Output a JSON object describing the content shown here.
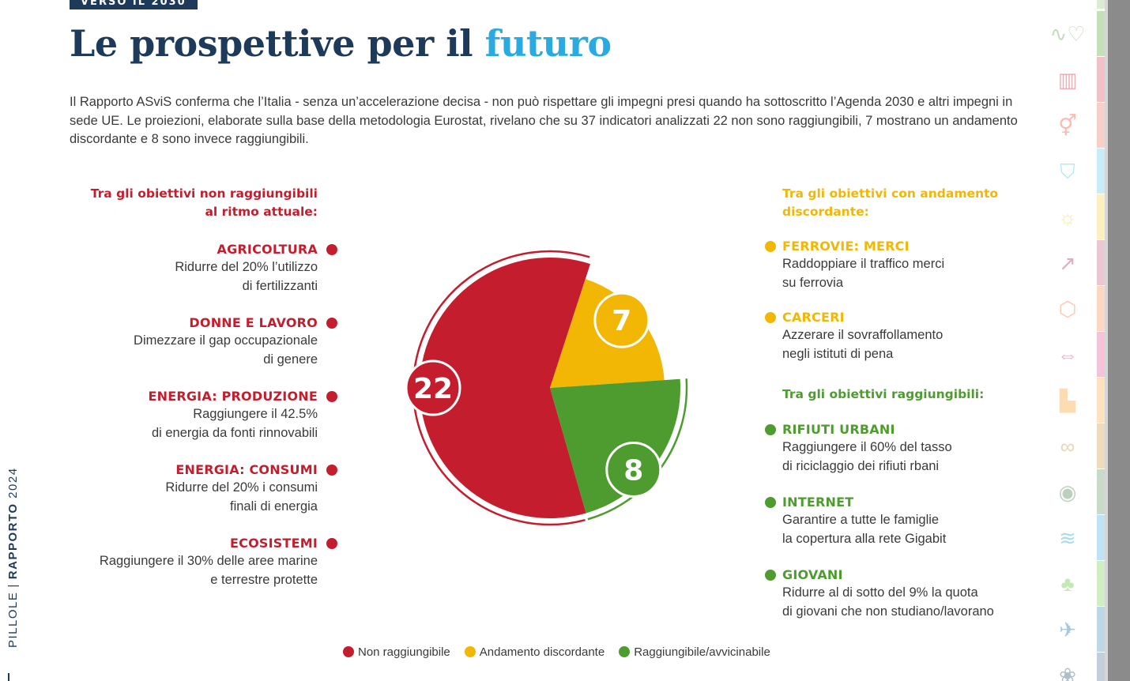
{
  "header": {
    "kicker": "VERSO IL 2030",
    "title_main": "Le prospettive per il",
    "title_accent": "futuro"
  },
  "intro": "Il Rapporto ASviS conferma che l’Italia - senza un’accelerazione decisa - non può rispettare gli impegni presi quando ha sottoscritto l’Agenda 2030 e altri impegni in sede UE. Le proiezioni, elaborate sulla base della metodologia Eurostat, rivelano che su 37 indicatori analizzati 22 non sono raggiungibili, 7 mostrano un andamento discordante e 8 sono invece raggiungibili.",
  "left_group": {
    "heading_line1": "Tra gli obiettivi non raggiungibili",
    "heading_line2": "al ritmo attuale:",
    "items": [
      {
        "title": "AGRICOLTURA",
        "desc1": "Ridurre del 20% l’utilizzo",
        "desc2": "di fertilizzanti"
      },
      {
        "title": "DONNE E LAVORO",
        "desc1": "Dimezzare il gap occupazionale",
        "desc2": "di genere"
      },
      {
        "title": "ENERGIA: PRODUZIONE",
        "desc1": "Raggiungere il 42.5%",
        "desc2": "di energia da fonti rinnovabili"
      },
      {
        "title": "ENERGIA: CONSUMI",
        "desc1": "Ridurre del 20% i consumi",
        "desc2": "finali di energia"
      },
      {
        "title": "ECOSISTEMI",
        "desc1": "Raggiungere il 30% delle aree marine",
        "desc2": "e terrestre protette"
      }
    ]
  },
  "right_group_discordant": {
    "heading_line1": "Tra gli obiettivi con andamento",
    "heading_line2": "discordante:",
    "items": [
      {
        "title": "FERROVIE: MERCI",
        "desc1": "Raddoppiare il traffico merci",
        "desc2": "su ferrovia"
      },
      {
        "title": "CARCERI",
        "desc1": "Azzerare il sovraffollamento",
        "desc2": "negli istituti di pena"
      }
    ]
  },
  "right_group_reachable": {
    "heading": "Tra gli obiettivi raggiungibili:",
    "items": [
      {
        "title": "RIFIUTI URBANI",
        "desc1": "Raggiungere il 60% del tasso",
        "desc2": "di riciclaggio dei rifiuti rbani"
      },
      {
        "title": "INTERNET",
        "desc1": "Garantire a tutte le famiglie",
        "desc2": "la copertura alla rete Gigabit"
      },
      {
        "title": "GIOVANI",
        "desc1": "Ridurre al di sotto del 9% la quota",
        "desc2": "di giovani che non studiano/lavorano"
      }
    ]
  },
  "chart_data": {
    "type": "pie",
    "title": "",
    "categories": [
      "Non raggiungibile",
      "Andamento discordante",
      "Raggiungibile/avvicinabile"
    ],
    "values": [
      22,
      7,
      8
    ],
    "colors": [
      "#c41e2e",
      "#f2b705",
      "#4e9c2f"
    ],
    "data_labels": [
      "22",
      "7",
      "8"
    ],
    "legend_position": "bottom"
  },
  "legend": {
    "items": [
      "Non raggiungibile",
      "Andamento discordante",
      "Raggiungibile/avvicinabile"
    ]
  },
  "side": {
    "label_light": "PILLOLE",
    "label_bold": "RAPPORTO",
    "label_year": "2024"
  },
  "colors": {
    "navy": "#1e3a5a",
    "accent_blue": "#29abe2",
    "red": "#c41e2e",
    "yellow": "#f2b705",
    "green": "#4e9c2f"
  },
  "goal_icons": [
    "health-icon",
    "education-icon",
    "gender-equality-icon",
    "clean-water-icon",
    "energy-icon",
    "economic-growth-icon",
    "industry-innovation-icon",
    "reduced-inequalities-icon",
    "sustainable-cities-icon",
    "responsible-consumption-icon",
    "climate-action-icon",
    "life-below-water-icon",
    "life-on-land-icon",
    "peace-justice-icon",
    "partnerships-icon"
  ]
}
